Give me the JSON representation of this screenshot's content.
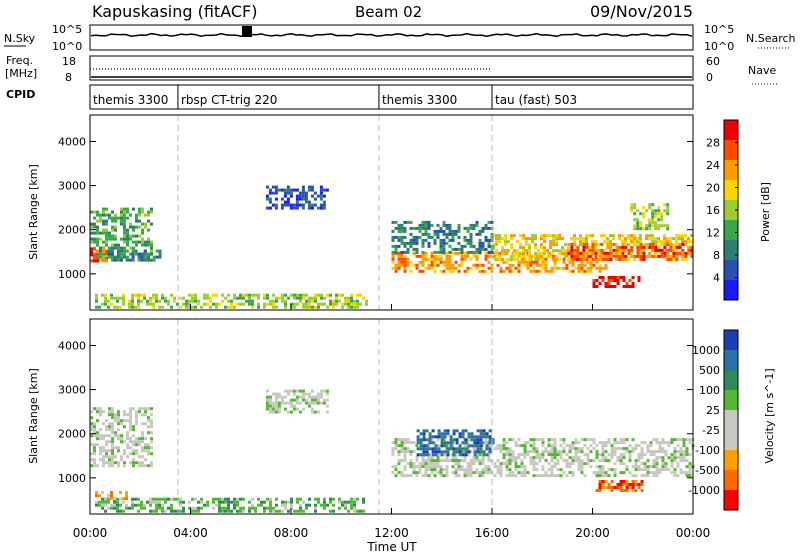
{
  "header": {
    "station": "Kapuskasing (fitACF)",
    "beam": "Beam 02",
    "date": "09/Nov/2015"
  },
  "noise_panel": {
    "left_label": "N.Sky",
    "left_ticks": [
      "10^5",
      "10^0"
    ],
    "right_ticks": [
      "10^5",
      "10^0"
    ],
    "right_label": "N.Search"
  },
  "freq_panel": {
    "left_label_1": "Freq.",
    "left_label_2": "[MHz]",
    "left_ticks": [
      "18",
      "8"
    ],
    "right_ticks": [
      "60",
      "0"
    ],
    "right_label": "Nave"
  },
  "cpid_panel": {
    "label": "CPID",
    "segments": [
      {
        "text": "themis 3300",
        "start": 0.0
      },
      {
        "text": "rbsp CT-trig 220",
        "start": 3.5
      },
      {
        "text": "themis 3300",
        "start": 11.5
      },
      {
        "text": "tau (fast) 503",
        "start": 16.0
      }
    ]
  },
  "colors": {
    "power": [
      "#1a1aff",
      "#2b4fb0",
      "#2f7d6e",
      "#3aa84a",
      "#9ccc30",
      "#ffd400",
      "#ff9a00",
      "#ff4a00",
      "#ee0000"
    ],
    "velocity": [
      "#1c3fb8",
      "#2d6fa8",
      "#2e8a5a",
      "#55b832",
      "#c8c8c0",
      "#c8c8c0",
      "#ffa000",
      "#ff6a00",
      "#ff0000"
    ]
  },
  "chart_data": [
    {
      "type": "heatmap",
      "panel": "power",
      "ylabel": "Slant Range [km]",
      "xlim": [
        0,
        24
      ],
      "ylim": [
        180,
        4600
      ],
      "yticks": [
        1000,
        2000,
        3000,
        4000
      ],
      "colorbar": {
        "label": "Power [dB]",
        "range": [
          0,
          32
        ],
        "ticks": [
          "4",
          "8",
          "12",
          "16",
          "20",
          "24",
          "28"
        ]
      },
      "regions": [
        {
          "t0": 0.0,
          "t1": 2.5,
          "r0": 1300,
          "r1": 2500,
          "level": 3
        },
        {
          "t0": 0.0,
          "t1": 0.6,
          "r0": 1300,
          "r1": 1600,
          "level": 7
        },
        {
          "t0": 0.7,
          "t1": 2.8,
          "r0": 1300,
          "r1": 1550,
          "level": 2
        },
        {
          "t0": 0.2,
          "t1": 11.0,
          "r0": 250,
          "r1": 550,
          "level": 4
        },
        {
          "t0": 7.0,
          "t1": 9.5,
          "r0": 2500,
          "r1": 3000,
          "level": 1
        },
        {
          "t0": 12.0,
          "t1": 20.5,
          "r0": 1050,
          "r1": 1500,
          "level": 6
        },
        {
          "t0": 16.0,
          "t1": 24.0,
          "r0": 1300,
          "r1": 1900,
          "level": 5
        },
        {
          "t0": 19.0,
          "t1": 24.0,
          "r0": 1300,
          "r1": 1700,
          "level": 7
        },
        {
          "t0": 20.0,
          "t1": 21.8,
          "r0": 700,
          "r1": 950,
          "level": 8
        },
        {
          "t0": 12.0,
          "t1": 16.0,
          "r0": 1500,
          "r1": 2200,
          "level": 2
        },
        {
          "t0": 21.5,
          "t1": 23.0,
          "r0": 2000,
          "r1": 2600,
          "level": 4
        }
      ]
    },
    {
      "type": "heatmap",
      "panel": "velocity",
      "ylabel": "Slant Range [km]",
      "xlabel": "Time UT",
      "xlim": [
        0,
        24
      ],
      "xticks": [
        "00:00",
        "04:00",
        "08:00",
        "12:00",
        "16:00",
        "20:00",
        "00:00"
      ],
      "ylim": [
        180,
        4600
      ],
      "yticks": [
        1000,
        2000,
        3000,
        4000
      ],
      "colorbar": {
        "label": "Velocity [m s^-1]",
        "ticks": [
          "1000",
          "500",
          "100",
          "25",
          "-25",
          "-100",
          "-500",
          "-1000"
        ]
      },
      "regions": [
        {
          "t0": 0.0,
          "t1": 2.5,
          "r0": 1300,
          "r1": 2600,
          "level": 4
        },
        {
          "t0": 0.2,
          "t1": 11.0,
          "r0": 250,
          "r1": 550,
          "level": 3
        },
        {
          "t0": 0.2,
          "t1": 1.5,
          "r0": 500,
          "r1": 700,
          "level": 6
        },
        {
          "t0": 7.0,
          "t1": 9.5,
          "r0": 2500,
          "r1": 3000,
          "level": 4
        },
        {
          "t0": 12.0,
          "t1": 24.0,
          "r0": 1050,
          "r1": 1900,
          "level": 4
        },
        {
          "t0": 20.0,
          "t1": 22.0,
          "r0": 700,
          "r1": 950,
          "level": 7
        },
        {
          "t0": 13.0,
          "t1": 16.0,
          "r0": 1500,
          "r1": 2100,
          "level": 1
        }
      ]
    }
  ]
}
